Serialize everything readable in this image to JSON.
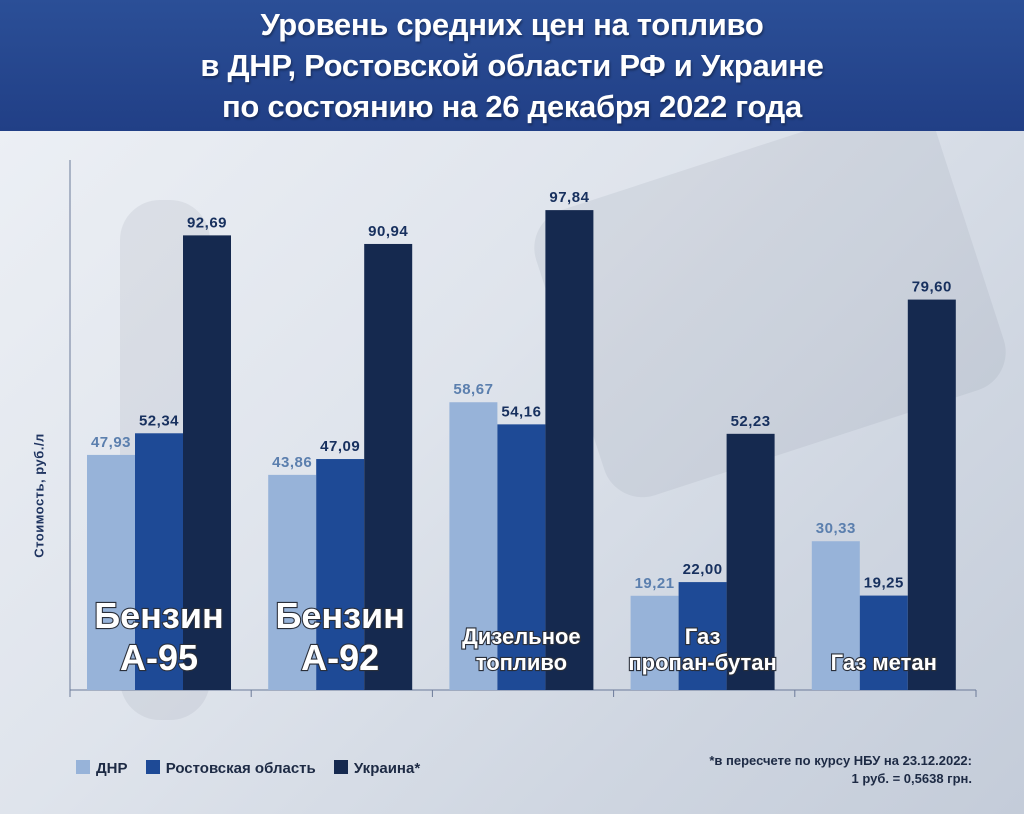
{
  "chart_data": {
    "type": "bar",
    "title": [
      "Уровень средних цен на топливо",
      "в ДНР, Ростовской области РФ и Украине",
      "по состоянию на 26 декабря 2022 года"
    ],
    "ylabel": "Стоимость,  руб./л",
    "xlabel": "",
    "ylim": [
      0,
      105
    ],
    "grid": false,
    "legend_position": "bottom-left",
    "categories": [
      [
        "Бензин",
        "А-95"
      ],
      [
        "Бензин",
        "А-92"
      ],
      [
        "Дизельное",
        "топливо"
      ],
      [
        "Газ",
        "пропан-бутан"
      ],
      [
        "Газ метан"
      ]
    ],
    "series": [
      {
        "name": "ДНР",
        "color": "#97b3d9",
        "value_label_color": "#5b7fae",
        "values": [
          47.93,
          43.86,
          58.67,
          19.21,
          30.33
        ],
        "labels": [
          "47,93",
          "43,86",
          "58,67",
          "19,21",
          "30,33"
        ]
      },
      {
        "name": "Ростовская область",
        "color": "#1e4a96",
        "value_label_color": "#17305e",
        "values": [
          52.34,
          47.09,
          54.16,
          22.0,
          19.25
        ],
        "labels": [
          "52,34",
          "47,09",
          "54,16",
          "22,00",
          "19,25"
        ]
      },
      {
        "name": "Украина*",
        "color": "#15294f",
        "value_label_color": "#17305e",
        "values": [
          92.69,
          90.94,
          97.84,
          52.23,
          79.6
        ],
        "labels": [
          "92,69",
          "90,94",
          "97,84",
          "52,23",
          "79,60"
        ]
      }
    ],
    "footnote": [
      "*в пересчете по курсу НБУ на 23.12.2022:",
      "1 руб. = 0,5638 грн."
    ]
  }
}
